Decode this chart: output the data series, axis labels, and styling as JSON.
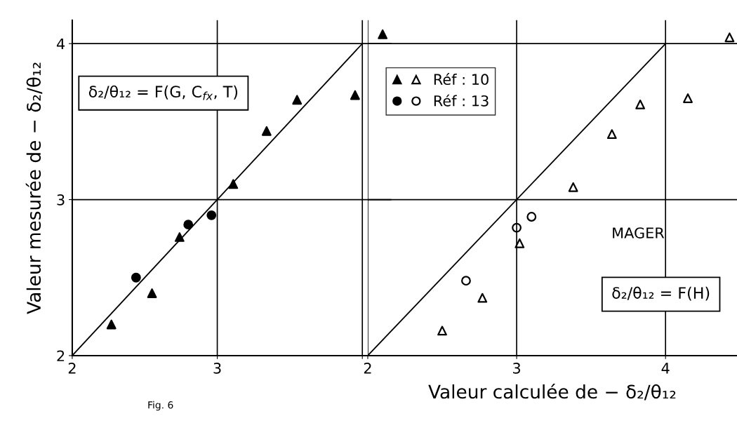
{
  "chart_data": [
    {
      "type": "scatter",
      "ylabel": "Valeur mesurée de − δ₂/θ₁₂",
      "xlim": [
        2,
        4.2
      ],
      "xticks": [
        2,
        3,
        {
          "value": 4,
          "label": null
        }
      ],
      "ylim": [
        2,
        4.15
      ],
      "yticks": [
        2,
        3,
        4
      ],
      "grid": true,
      "legend": false,
      "annotations": [
        "δ₂/θ₁₂ = F(G, C$_{fx}$, T)",
        "Fig. 6"
      ],
      "series": [
        {
          "type": "line",
          "color": "#000000",
          "x": [
            2,
            4
          ],
          "values": [
            2,
            4
          ],
          "marker": "none",
          "line_style": "solid"
        },
        {
          "color": "#000000",
          "marker": "triangle",
          "x": [
            2.27,
            2.55,
            2.74,
            3.11,
            3.34,
            3.55,
            3.95,
            4.14
          ],
          "values": [
            2.2,
            2.4,
            2.76,
            3.1,
            3.44,
            3.64,
            3.67,
            4.06
          ]
        },
        {
          "color": "#000000",
          "marker": "circle",
          "x": [
            2.44,
            2.8,
            2.96
          ],
          "values": [
            2.5,
            2.84,
            2.9
          ]
        }
      ]
    },
    {
      "type": "scatter",
      "xlabel": "Valeur calculée de − δ₂/θ₁₂",
      "xlim": [
        2,
        4.48
      ],
      "xticks": [
        2,
        3,
        4
      ],
      "ylim": [
        2,
        4.15
      ],
      "yticks": [
        2,
        3,
        4
      ],
      "tick_labels": "x",
      "grid": true,
      "legend": "top left",
      "annotations": [
        "MAGER",
        "δ₂/θ₁₂ = F(H)"
      ],
      "series": [
        {
          "type": "line",
          "color": "#000000",
          "x": [
            2,
            4
          ],
          "values": [
            2,
            4
          ],
          "marker": "none",
          "line_style": "solid"
        },
        {
          "name": "Réf : 10",
          "color": "#000000",
          "marker": "triangle",
          "x": [
            2.5,
            2.77,
            3.02,
            3.38,
            3.64,
            3.83,
            4.15,
            4.43
          ],
          "values": [
            2.16,
            2.37,
            2.72,
            3.08,
            3.42,
            3.61,
            3.65,
            4.04
          ]
        },
        {
          "name": "Réf : 13",
          "color": "#000000",
          "marker": "circle",
          "x": [
            2.66,
            3.0,
            3.1
          ],
          "values": [
            2.48,
            2.82,
            2.89
          ]
        }
      ]
    }
  ]
}
